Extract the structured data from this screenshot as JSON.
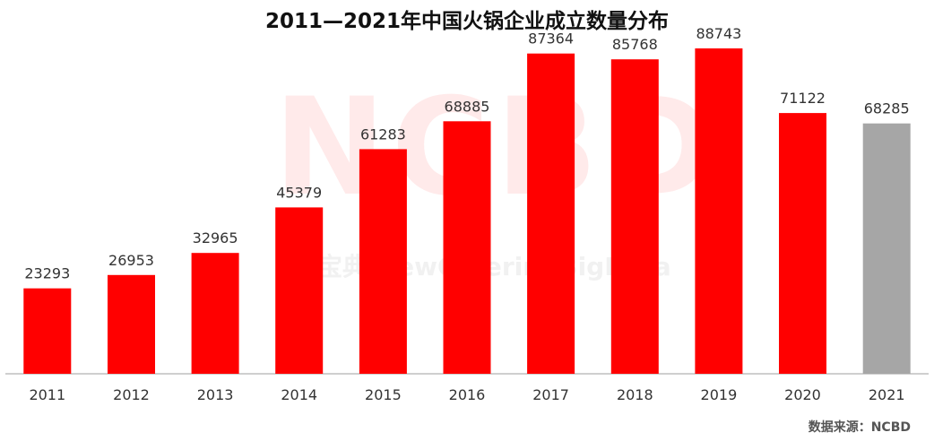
{
  "chart_data": {
    "type": "bar",
    "title": "2011—2021年中国火锅企业成立数量分布",
    "categories": [
      "2011",
      "2012",
      "2013",
      "2014",
      "2015",
      "2016",
      "2017",
      "2018",
      "2019",
      "2020",
      "2021"
    ],
    "values": [
      23293,
      26953,
      32965,
      45379,
      61283,
      68885,
      87364,
      85768,
      88743,
      71122,
      68285
    ],
    "data_labels": [
      "23293",
      "26953",
      "32965",
      "45379",
      "61283",
      "68885",
      "87364",
      "85768",
      "88743",
      "71122",
      "68285"
    ],
    "ylim": [
      0,
      100000
    ],
    "grid": false,
    "legend": "none",
    "colors": {
      "default_bar": "#ff0000",
      "highlight_bar": "#a6a6a6",
      "highlight_category": "2021",
      "axis": "#bfbfbf"
    }
  },
  "source": "数据来源：NCBD",
  "watermark": {
    "logo": "NCBD",
    "subtitle": "餐宝典 NewCateringBigData"
  }
}
